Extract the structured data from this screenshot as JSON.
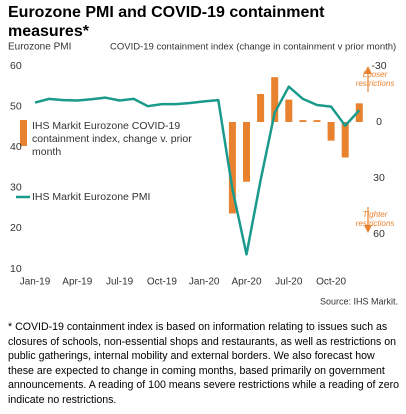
{
  "chart_data": {
    "type": "bar-line",
    "title": "Eurozone PMI and COVID-19 containment measures*",
    "y_label": "Eurozone PMI",
    "y2_label": "COVID-19 containment index (change in containment v prior month)",
    "source": "Source: IHS Markit.",
    "footnote": "* COVID-19 containment index is based on information relating to issues such as closures of schools, non-essential shops and restaurants, as well as restrictions on public gatherings, internal mobility and external borders. We also forecast how these are expected to change in coming months, based primarily on government announcements. A reading of 100 means severe restrictions while a reading of zero indicate no restrictions.",
    "annotations": [
      [
        "Looser",
        "restrictions"
      ],
      [
        "Tighter",
        "restrictions"
      ]
    ],
    "categories": [
      "Jan-19",
      null,
      null,
      "Apr-19",
      null,
      null,
      "Jul-19",
      null,
      null,
      "Oct-19",
      null,
      null,
      "Jan-20",
      null,
      null,
      "Apr-20",
      null,
      null,
      "Jul-20",
      null,
      null,
      "Oct-20",
      null,
      null
    ],
    "series": [
      {
        "name": "IHS Markit Eurozone COVID-19 containment index, change v. prior month",
        "type": "bar",
        "axis": "y2",
        "color": "#e8822e",
        "values": [
          null,
          null,
          null,
          null,
          null,
          null,
          null,
          null,
          null,
          null,
          null,
          null,
          null,
          null,
          49,
          32,
          -15,
          -24,
          -12,
          -1,
          -1,
          10,
          19,
          -10
        ]
      },
      {
        "name": "IHS Markit Eurozone PMI",
        "type": "line",
        "color": "#1a9a8c",
        "values": [
          51.0,
          51.9,
          51.6,
          51.5,
          51.8,
          52.2,
          51.5,
          51.9,
          50.1,
          50.6,
          50.6,
          50.9,
          51.3,
          51.6,
          29.7,
          13.6,
          31.9,
          48.5,
          54.9,
          51.9,
          50.4,
          50.0,
          45.3,
          49.1
        ]
      }
    ],
    "ylim": [
      10,
      60
    ],
    "yticks": [
      10,
      20,
      30,
      40,
      50,
      60
    ],
    "y2lim": [
      78.75,
      -30
    ],
    "y2ticks": [
      -30,
      0,
      30,
      60
    ],
    "y2_inverted": true,
    "grid": false
  }
}
